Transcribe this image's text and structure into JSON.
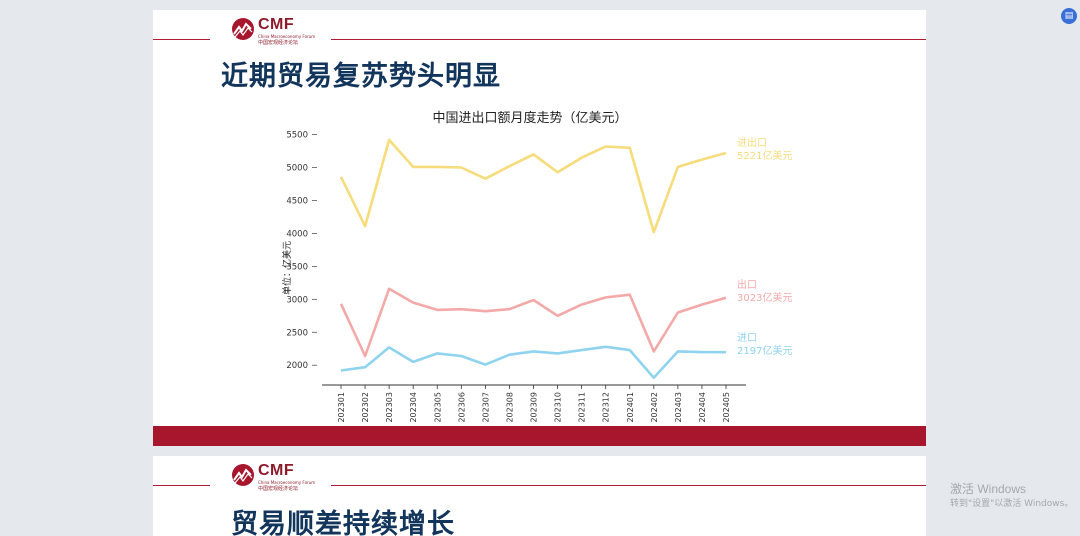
{
  "slide1": {
    "logo_text": "CMF",
    "logo_subtitle": "China Macroeconomy Forum",
    "logo_cn": "中国宏观经济论坛",
    "title": "近期贸易复苏势头明显"
  },
  "slide2": {
    "logo_text": "CMF",
    "logo_subtitle": "China Macroeconomy Forum",
    "logo_cn": "中国宏观经济论坛",
    "title": "贸易顺差持续增长"
  },
  "chart_data": {
    "type": "line",
    "title": "中国进出口额月度走势（亿美元）",
    "ylabel": "单位：亿美元",
    "xlabel": "",
    "ylim": [
      1700,
      5600
    ],
    "yticks": [
      2000,
      2500,
      3000,
      3500,
      4000,
      4500,
      5000,
      5500
    ],
    "grid": false,
    "categories": [
      "202301",
      "202302",
      "202303",
      "202304",
      "202305",
      "202306",
      "202307",
      "202308",
      "202309",
      "202310",
      "202311",
      "202312",
      "202401",
      "202402",
      "202403",
      "202404",
      "202405"
    ],
    "series": [
      {
        "name": "进出口",
        "end_label": "5221亿美元",
        "color": "#f7dc7c",
        "values": [
          4860,
          4110,
          5420,
          5010,
          5010,
          5000,
          4830,
          5020,
          5200,
          4930,
          5150,
          5320,
          5300,
          4020,
          5010,
          5120,
          5221
        ]
      },
      {
        "name": "出口",
        "end_label": "3023亿美元",
        "color": "#f4a9a9",
        "values": [
          2930,
          2140,
          3160,
          2950,
          2840,
          2850,
          2820,
          2850,
          2990,
          2750,
          2920,
          3030,
          3070,
          2210,
          2800,
          2920,
          3023
        ]
      },
      {
        "name": "进口",
        "end_label": "2197亿美元",
        "color": "#8fd3ef",
        "values": [
          1920,
          1970,
          2270,
          2050,
          2180,
          2140,
          2010,
          2160,
          2210,
          2180,
          2230,
          2280,
          2230,
          1810,
          2210,
          2200,
          2197
        ]
      }
    ]
  },
  "watermark": {
    "line1": "激活 Windows",
    "line2": "转到\"设置\"以激活 Windows。"
  },
  "top_button_icon": "page-icon"
}
